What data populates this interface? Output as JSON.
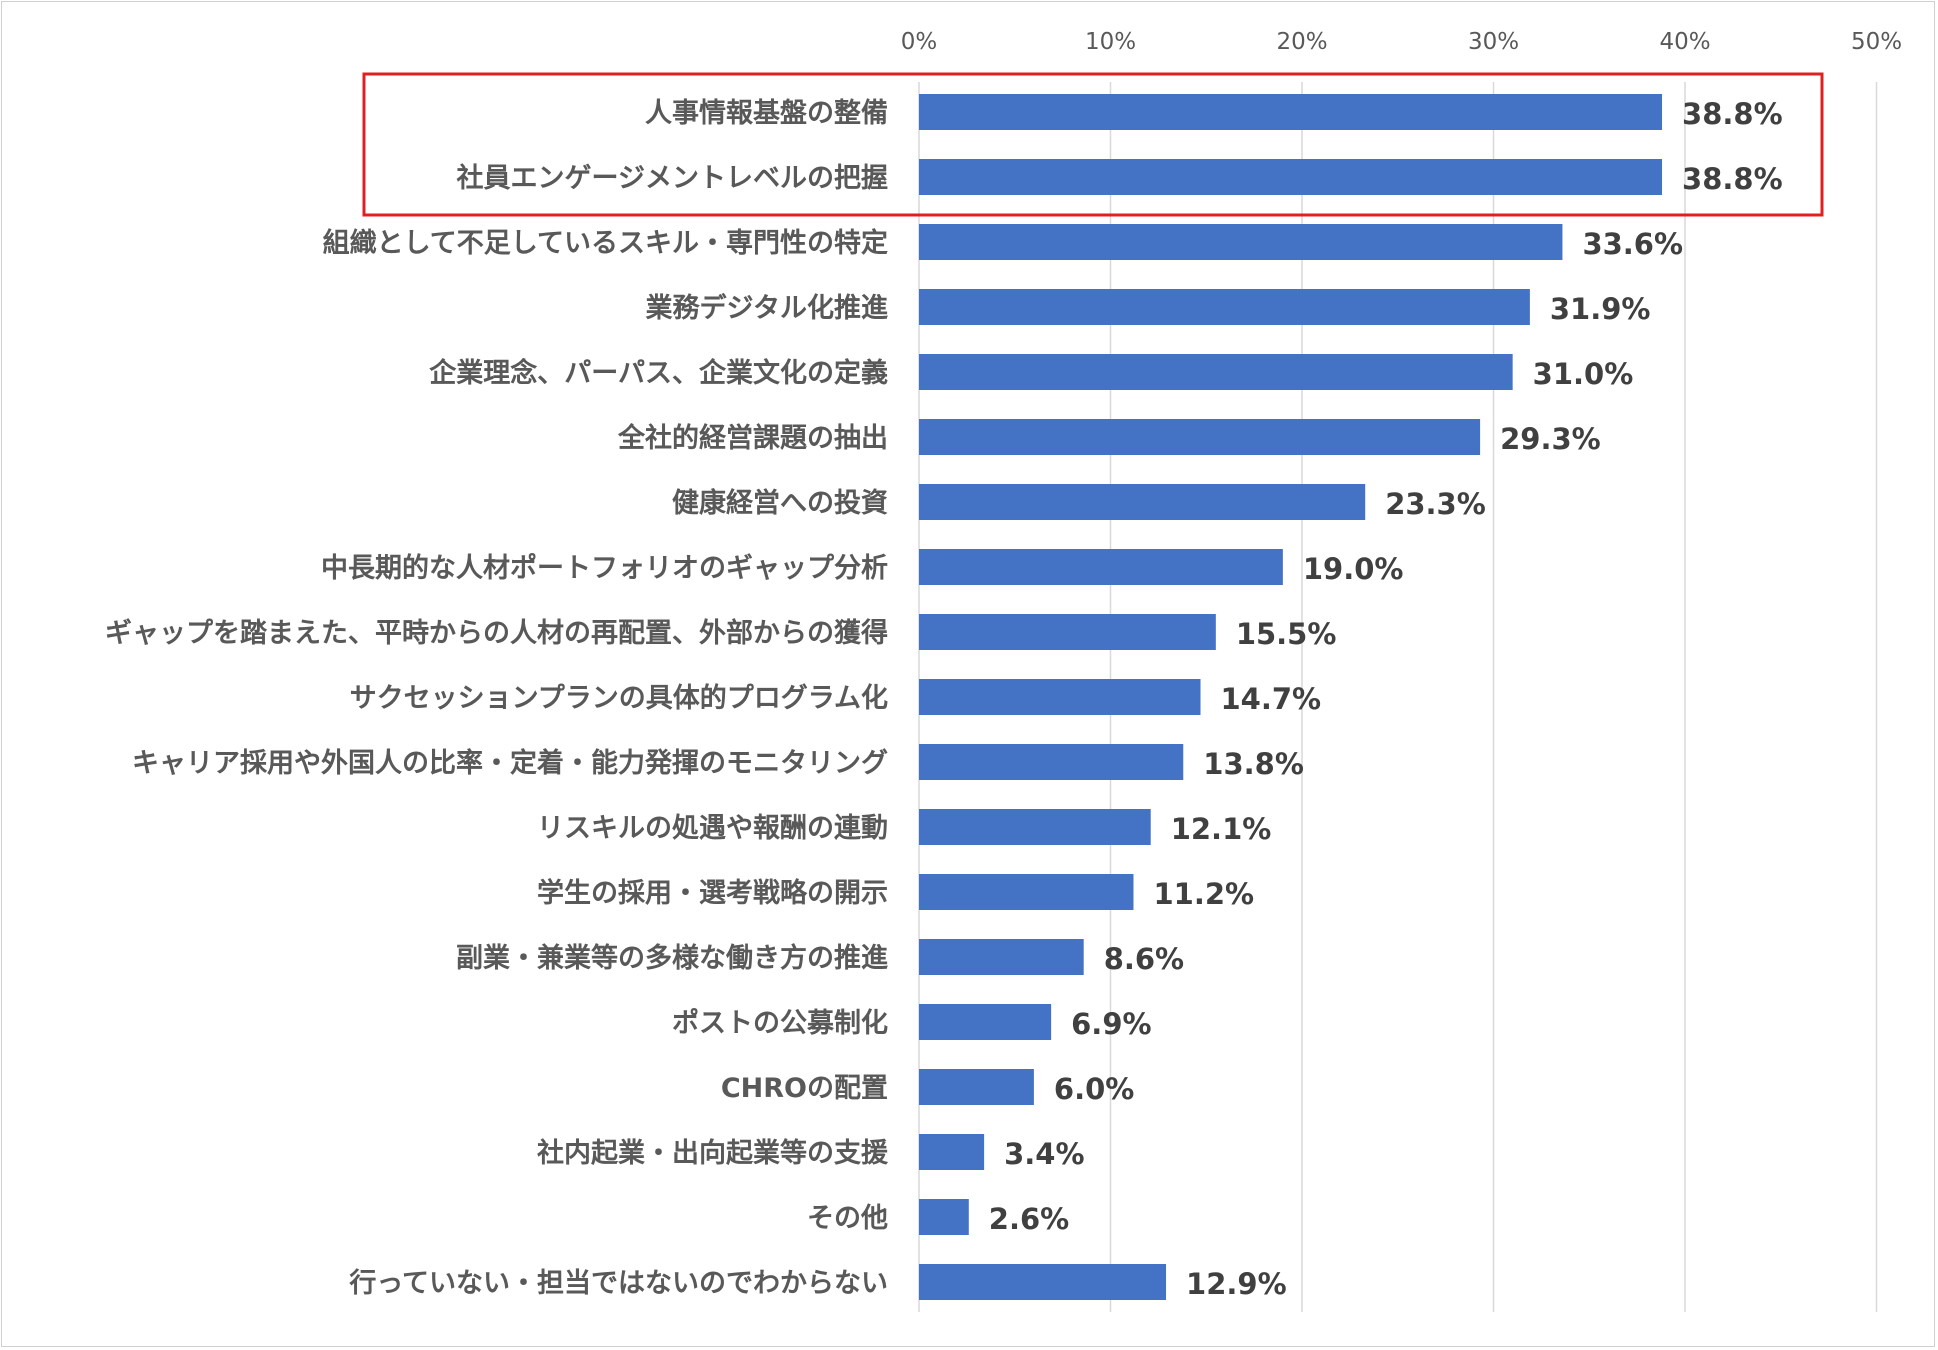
{
  "chart_data": {
    "type": "bar",
    "orientation": "horizontal",
    "title": "",
    "xlabel": "",
    "ylabel": "",
    "xlim": [
      0,
      50
    ],
    "ticks": [
      "0%",
      "10%",
      "20%",
      "30%",
      "40%",
      "50%"
    ],
    "tick_values": [
      0,
      10,
      20,
      30,
      40,
      50
    ],
    "grid": true,
    "bar_color": "#4472c4",
    "highlight_color": "#e02020",
    "highlighted_categories": [
      "人事情報基盤の整備",
      "社員エンゲージメントレベルの把握"
    ],
    "categories": [
      "人事情報基盤の整備",
      "社員エンゲージメントレベルの把握",
      "組織として不足しているスキル・専門性の特定",
      "業務デジタル化推進",
      "企業理念、パーパス、企業文化の定義",
      "全社的経営課題の抽出",
      "健康経営への投資",
      "中長期的な人材ポートフォリオのギャップ分析",
      "ギャップを踏まえた、平時からの人材の再配置、外部からの獲得",
      "サクセッションプランの具体的プログラム化",
      "キャリア採用や外国人の比率・定着・能力発揮のモニタリング",
      "リスキルの処遇や報酬の連動",
      "学生の採用・選考戦略の開示",
      "副業・兼業等の多様な働き方の推進",
      "ポストの公募制化",
      "CHROの配置",
      "社内起業・出向起業等の支援",
      "その他",
      "行っていない・担当ではないのでわからない"
    ],
    "values": [
      38.8,
      38.8,
      33.6,
      31.9,
      31.0,
      29.3,
      23.3,
      19.0,
      15.5,
      14.7,
      13.8,
      12.1,
      11.2,
      8.6,
      6.9,
      6.0,
      3.4,
      2.6,
      12.9
    ],
    "value_labels": [
      "38.8%",
      "38.8%",
      "33.6%",
      "31.9%",
      "31.0%",
      "29.3%",
      "23.3%",
      "19.0%",
      "15.5%",
      "14.7%",
      "13.8%",
      "12.1%",
      "11.2%",
      "8.6%",
      "6.9%",
      "6.0%",
      "3.4%",
      "2.6%",
      "12.9%"
    ]
  }
}
